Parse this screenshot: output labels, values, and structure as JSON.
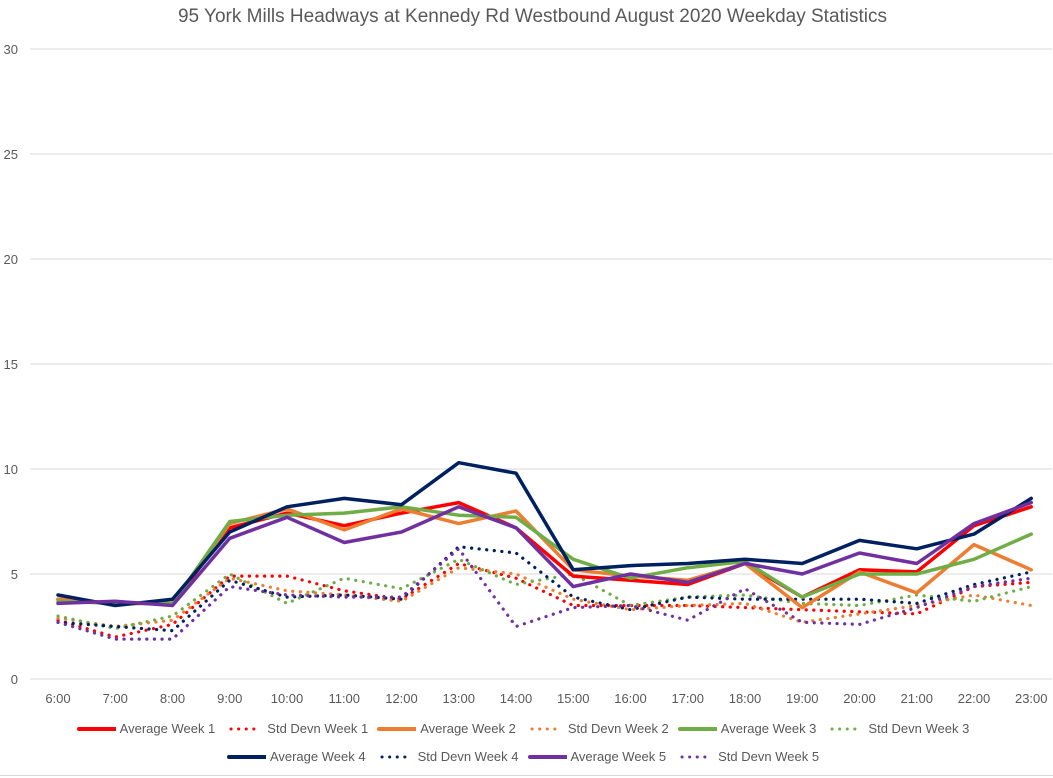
{
  "chart_data": {
    "type": "line",
    "title": "95 York Mills Headways at Kennedy Rd Westbound August 2020 Weekday Statistics",
    "xlabel": "",
    "ylabel": "",
    "ylim": [
      0,
      30
    ],
    "yticks": [
      "0",
      "5",
      "10",
      "15",
      "20",
      "25",
      "30"
    ],
    "ytick_values": [
      0,
      5,
      10,
      15,
      20,
      25,
      30
    ],
    "grid": true,
    "legend_position": "bottom",
    "categories": [
      "6:00",
      "7:00",
      "8:00",
      "9:00",
      "10:00",
      "11:00",
      "12:00",
      "13:00",
      "14:00",
      "15:00",
      "16:00",
      "17:00",
      "18:00",
      "19:00",
      "20:00",
      "21:00",
      "22:00",
      "23:00"
    ],
    "series": [
      {
        "name": "Average Week 1",
        "color": "#FF0000",
        "style": "solid",
        "values": [
          3.8,
          3.6,
          3.6,
          7.2,
          7.9,
          7.3,
          7.9,
          8.4,
          7.2,
          4.9,
          4.7,
          4.5,
          5.5,
          3.9,
          5.2,
          5.1,
          7.3,
          8.2
        ]
      },
      {
        "name": "Std Devn Week 1",
        "color": "#FF0000",
        "style": "dotted",
        "values": [
          2.8,
          2.0,
          2.6,
          4.9,
          4.9,
          4.2,
          3.8,
          5.5,
          4.8,
          3.5,
          3.5,
          3.5,
          3.4,
          3.3,
          3.2,
          3.1,
          4.4,
          4.6
        ]
      },
      {
        "name": "Average Week 2",
        "color": "#ED7D31",
        "style": "solid",
        "values": [
          3.8,
          3.6,
          3.6,
          7.4,
          8.1,
          7.1,
          8.1,
          7.4,
          8.0,
          5.2,
          4.9,
          4.7,
          5.5,
          3.4,
          5.1,
          4.1,
          6.4,
          5.2
        ]
      },
      {
        "name": "Std Devn Week 2",
        "color": "#ED7D31",
        "style": "dotted",
        "values": [
          2.9,
          2.5,
          2.8,
          4.8,
          4.2,
          4.0,
          3.7,
          5.3,
          5.0,
          3.8,
          3.3,
          3.5,
          3.6,
          2.7,
          3.1,
          3.5,
          4.0,
          3.5
        ]
      },
      {
        "name": "Average Week 3",
        "color": "#70AD47",
        "style": "solid",
        "values": [
          3.7,
          3.6,
          3.6,
          7.5,
          7.8,
          7.9,
          8.2,
          7.8,
          7.7,
          5.7,
          4.8,
          5.3,
          5.6,
          3.9,
          5.0,
          5.0,
          5.7,
          6.9
        ]
      },
      {
        "name": "Std Devn Week 3",
        "color": "#70AD47",
        "style": "dotted",
        "values": [
          3.0,
          2.4,
          3.0,
          5.0,
          3.6,
          4.8,
          4.3,
          5.7,
          4.5,
          5.0,
          3.5,
          3.9,
          4.0,
          3.6,
          3.5,
          4.0,
          3.7,
          4.4
        ]
      },
      {
        "name": "Average Week 4",
        "color": "#002060",
        "style": "solid",
        "values": [
          4.0,
          3.5,
          3.8,
          7.0,
          8.2,
          8.6,
          8.3,
          10.3,
          9.8,
          5.2,
          5.4,
          5.5,
          5.7,
          5.5,
          6.6,
          6.2,
          6.9,
          8.6
        ]
      },
      {
        "name": "Std Devn Week 4",
        "color": "#002060",
        "style": "dotted",
        "values": [
          2.7,
          2.5,
          2.3,
          4.7,
          3.9,
          4.0,
          3.8,
          6.3,
          6.0,
          3.9,
          3.3,
          3.9,
          3.8,
          3.8,
          3.8,
          3.6,
          4.5,
          5.1
        ]
      },
      {
        "name": "Average Week 5",
        "color": "#7030A0",
        "style": "solid",
        "values": [
          3.6,
          3.7,
          3.5,
          6.7,
          7.7,
          6.5,
          7.0,
          8.2,
          7.2,
          4.4,
          5.0,
          4.6,
          5.5,
          5.0,
          6.0,
          5.5,
          7.4,
          8.4
        ]
      },
      {
        "name": "Std Devn Week 5",
        "color": "#7030A0",
        "style": "dotted",
        "values": [
          2.7,
          1.9,
          1.9,
          4.4,
          4.0,
          3.9,
          3.9,
          6.2,
          2.5,
          3.4,
          3.5,
          2.8,
          4.3,
          2.7,
          2.6,
          3.4,
          4.4,
          4.8
        ]
      }
    ]
  }
}
